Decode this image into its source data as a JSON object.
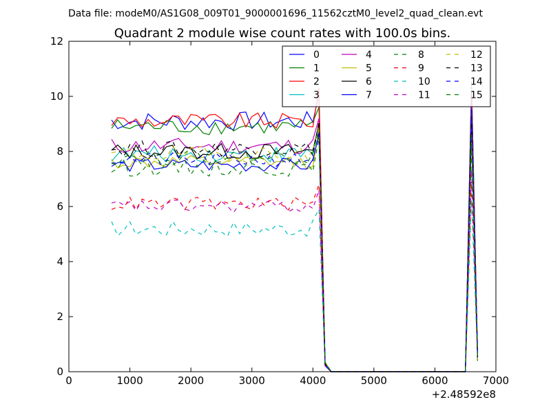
{
  "chart_data": {
    "type": "line",
    "suptitle": "Data file: modeM0/AS1G08_009T01_9000001696_11562cztM0_level2_quad_clean.evt",
    "title": "Quadrant 2 module wise count rates with 100.0s bins.",
    "xlabel": "",
    "ylabel": "",
    "xlim": [
      0,
      7000
    ],
    "ylim": [
      0,
      12
    ],
    "x_offset_label": "+2.48592e8",
    "x_ticks": [
      0,
      1000,
      2000,
      3000,
      4000,
      5000,
      6000,
      7000
    ],
    "x_tick_labels": [
      "0",
      "1000",
      "2000",
      "3000",
      "4000",
      "5000",
      "6000",
      "7000"
    ],
    "y_ticks": [
      0,
      2,
      4,
      6,
      8,
      10,
      12
    ],
    "y_tick_labels": [
      "0",
      "2",
      "4",
      "6",
      "8",
      "10",
      "12"
    ],
    "grid": false,
    "legend": {
      "placement": "top-right",
      "columns": 4
    },
    "series": [
      {
        "name": "0",
        "color": "#0000ff",
        "dash": "solid",
        "base": 9.1,
        "amp": 0.35,
        "peak": 10.1
      },
      {
        "name": "1",
        "color": "#008000",
        "dash": "solid",
        "base": 8.9,
        "amp": 0.3,
        "peak": 9.6
      },
      {
        "name": "2",
        "color": "#ff0000",
        "dash": "solid",
        "base": 9.1,
        "amp": 0.3,
        "peak": 10.3
      },
      {
        "name": "3",
        "color": "#00bfbf",
        "dash": "solid",
        "base": 7.9,
        "amp": 0.3,
        "peak": 9.0
      },
      {
        "name": "4",
        "color": "#bf00bf",
        "dash": "solid",
        "base": 8.2,
        "amp": 0.3,
        "peak": 9.2
      },
      {
        "name": "5",
        "color": "#bfbf00",
        "dash": "solid",
        "base": 7.6,
        "amp": 0.25,
        "peak": 8.8
      },
      {
        "name": "6",
        "color": "#000000",
        "dash": "solid",
        "base": 8.0,
        "amp": 0.3,
        "peak": 9.0
      },
      {
        "name": "7",
        "color": "#0000ff",
        "dash": "solid",
        "base": 7.5,
        "amp": 0.25,
        "peak": 8.6
      },
      {
        "name": "8",
        "color": "#008000",
        "dash": "dashed",
        "base": 7.4,
        "amp": 0.3,
        "peak": 8.5
      },
      {
        "name": "9",
        "color": "#ff0000",
        "dash": "dashed",
        "base": 6.1,
        "amp": 0.25,
        "peak": 6.8
      },
      {
        "name": "10",
        "color": "#00bfbf",
        "dash": "dashed",
        "base": 5.2,
        "amp": 0.3,
        "peak": 5.9
      },
      {
        "name": "11",
        "color": "#bf00bf",
        "dash": "dashed",
        "base": 6.0,
        "amp": 0.25,
        "peak": 6.6
      },
      {
        "name": "12",
        "color": "#bfbf00",
        "dash": "dashed",
        "base": 7.9,
        "amp": 0.3,
        "peak": 8.9
      },
      {
        "name": "13",
        "color": "#000000",
        "dash": "dashed",
        "base": 8.1,
        "amp": 0.3,
        "peak": 9.1
      },
      {
        "name": "14",
        "color": "#0000ff",
        "dash": "dashed",
        "base": 7.7,
        "amp": 0.25,
        "peak": 8.7
      },
      {
        "name": "15",
        "color": "#008000",
        "dash": "dashed",
        "base": 7.8,
        "amp": 0.3,
        "peak": 8.8
      }
    ],
    "x_points": [
      700,
      800,
      900,
      1000,
      1100,
      1200,
      1300,
      1400,
      1500,
      1600,
      1700,
      1800,
      1900,
      2000,
      2100,
      2200,
      2300,
      2400,
      2500,
      2600,
      2700,
      2800,
      2900,
      3000,
      3100,
      3200,
      3300,
      3400,
      3500,
      3600,
      3700,
      3800,
      3900,
      4000,
      4100,
      4200,
      4300,
      4400,
      4500,
      4600,
      4700,
      4800,
      4900,
      5000,
      5100,
      5200,
      5300,
      5400,
      5500,
      5600,
      5700,
      5800,
      5900,
      6000,
      6100,
      6200,
      6300,
      6400,
      6500,
      6600,
      6700
    ],
    "active_end_x": 4100,
    "drop_x": 4200,
    "zero_from_x": 4300,
    "zero_to_x": 6400,
    "second_peak_x": 6600,
    "second_peak_scale": 1.12,
    "end_x": 6700,
    "end_value": 0.3
  }
}
